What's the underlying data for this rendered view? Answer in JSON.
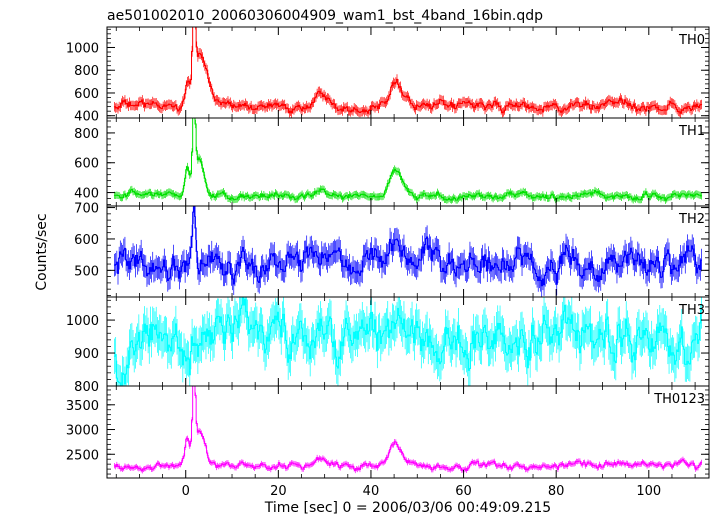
{
  "chart_data": {
    "type": "line",
    "title": "ae501002010_20060306004909_wam1_bst_4band_16bin.qdp",
    "xlabel": "Time [sec] 0 = 2006/03/06 00:49:09.215",
    "ylabel": "Counts/sec",
    "xlim": [
      -17,
      113
    ],
    "x_ticks": [
      0,
      20,
      40,
      60,
      80,
      100
    ],
    "x_tick_labels": [
      "0",
      "20",
      "40",
      "60",
      "80",
      "100"
    ],
    "grid": false,
    "error_bars": true,
    "bin_width_sec": 0.25,
    "time_start": -15.5,
    "time_end": 111.5,
    "panels": [
      {
        "name": "TH0",
        "color": "#ff0000",
        "ylim": [
          380,
          1180
        ],
        "y_ticks": [
          400,
          600,
          800,
          1000
        ],
        "y_tick_labels": [
          "400",
          "600",
          "800",
          "1000"
        ],
        "baseline": 480,
        "noise": 28,
        "error": 35,
        "features": [
          {
            "t": 0.3,
            "amp": 180,
            "w": 0.5
          },
          {
            "t": 1.8,
            "amp": 700,
            "w": 0.3
          },
          {
            "t": 2.9,
            "amp": 380,
            "w": 1.2
          },
          {
            "t": 4.5,
            "amp": 120,
            "w": 1.5
          },
          {
            "t": 29.0,
            "amp": 100,
            "w": 1.0
          },
          {
            "t": 31.5,
            "amp": 80,
            "w": 1.0
          },
          {
            "t": 45.0,
            "amp": 200,
            "w": 1.2
          },
          {
            "t": 46.5,
            "amp": 100,
            "w": 1.5
          }
        ]
      },
      {
        "name": "TH1",
        "color": "#00e000",
        "ylim": [
          310,
          900
        ],
        "y_ticks": [
          400,
          600,
          800
        ],
        "y_tick_labels": [
          "400",
          "600",
          "800"
        ],
        "baseline": 375,
        "noise": 15,
        "error": 20,
        "features": [
          {
            "t": 0.3,
            "amp": 200,
            "w": 0.5
          },
          {
            "t": 1.8,
            "amp": 520,
            "w": 0.3
          },
          {
            "t": 2.8,
            "amp": 250,
            "w": 1.0
          },
          {
            "t": 29.0,
            "amp": 50,
            "w": 1.0
          },
          {
            "t": 45.0,
            "amp": 140,
            "w": 1.2
          },
          {
            "t": 46.5,
            "amp": 60,
            "w": 1.5
          }
        ]
      },
      {
        "name": "TH2",
        "color": "#0000ff",
        "ylim": [
          415,
          705
        ],
        "y_ticks": [
          500,
          600,
          700
        ],
        "y_tick_labels": [
          "500",
          "600",
          "700"
        ],
        "baseline": 518,
        "noise": 32,
        "error": 30,
        "features": [
          {
            "t": 1.8,
            "amp": 160,
            "w": 0.3
          },
          {
            "t": 0.5,
            "amp": 40,
            "w": 3.0
          }
        ]
      },
      {
        "name": "TH3",
        "color": "#00ffff",
        "ylim": [
          800,
          1070
        ],
        "y_ticks": [
          800,
          900,
          1000
        ],
        "y_tick_labels": [
          "800",
          "900",
          "1000"
        ],
        "baseline": 935,
        "noise": 45,
        "error": 45,
        "features": [
          {
            "t": -14.5,
            "amp": -80,
            "w": 1.0
          }
        ]
      },
      {
        "name": "TH0123",
        "color": "#ff00ff",
        "ylim": [
          2020,
          3880
        ],
        "y_ticks": [
          2500,
          3000,
          3500
        ],
        "y_tick_labels": [
          "2500",
          "3000",
          "3500"
        ],
        "baseline": 2260,
        "noise": 50,
        "error": 45,
        "features": [
          {
            "t": 0.3,
            "amp": 500,
            "w": 0.5
          },
          {
            "t": 1.8,
            "amp": 1550,
            "w": 0.3
          },
          {
            "t": 2.9,
            "amp": 700,
            "w": 1.2
          },
          {
            "t": 29.0,
            "amp": 90,
            "w": 1.0
          },
          {
            "t": 45.0,
            "amp": 440,
            "w": 1.2
          },
          {
            "t": 46.5,
            "amp": 150,
            "w": 1.5
          }
        ]
      }
    ]
  }
}
